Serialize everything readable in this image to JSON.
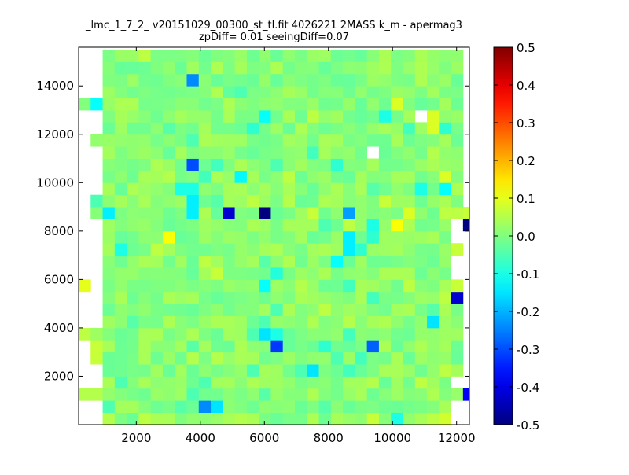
{
  "chart_data": {
    "type": "heatmap",
    "title": "_lmc_1_7_2_ v20151029_00300_st_tl.fit 4026221 2MASS k_m - apermag3",
    "subtitle": "zpDiff= 0.01 seeingDiff=0.07",
    "xlabel": "",
    "ylabel": "",
    "xlim": [
      200,
      12400
    ],
    "ylim": [
      0,
      15600
    ],
    "x_ticks": [
      "2000",
      "4000",
      "6000",
      "8000",
      "10000",
      "12000"
    ],
    "y_ticks": [
      "2000",
      "4000",
      "6000",
      "8000",
      "10000",
      "12000",
      "14000"
    ],
    "colorbar": {
      "colormap": "jet",
      "vmin": -0.5,
      "vmax": 0.5,
      "ticks": [
        "-0.5",
        "-0.4",
        "-0.3",
        "-0.2",
        "-0.1",
        "0.0",
        "0.1",
        "0.2",
        "0.3",
        "0.4",
        "0.5"
      ]
    },
    "bins": {
      "x_start": 200,
      "x_width": 375,
      "y_start": 0,
      "y_height": 500,
      "cols": 33,
      "rows": 31
    },
    "base_value": 0.01,
    "cells": [
      [
        5,
        30,
        0.06
      ],
      [
        9,
        28,
        -0.24
      ],
      [
        13,
        27,
        -0.05
      ],
      [
        12,
        27,
        -0.03
      ],
      [
        1,
        26,
        -0.12
      ],
      [
        15,
        25,
        -0.12
      ],
      [
        25,
        25,
        -0.1
      ],
      [
        19,
        25,
        0.06
      ],
      [
        26,
        26,
        0.09
      ],
      [
        29,
        25,
        0.09
      ],
      [
        27,
        24,
        -0.06
      ],
      [
        29,
        24,
        0.09
      ],
      [
        30,
        24,
        -0.08
      ],
      [
        14,
        24,
        -0.08
      ],
      [
        7,
        24,
        -0.04
      ],
      [
        9,
        23,
        -0.05
      ],
      [
        29,
        22,
        0.05
      ],
      [
        30,
        20,
        0.09
      ],
      [
        11,
        21,
        -0.06
      ],
      [
        16,
        21,
        -0.05
      ],
      [
        21,
        21,
        -0.08
      ],
      [
        19,
        22,
        -0.06
      ],
      [
        9,
        21,
        -0.3
      ],
      [
        10,
        20,
        -0.06
      ],
      [
        13,
        20,
        -0.13
      ],
      [
        7,
        20,
        0.05
      ],
      [
        5,
        20,
        0.04
      ],
      [
        17,
        20,
        0.06
      ],
      [
        8,
        19,
        -0.1
      ],
      [
        9,
        19,
        -0.1
      ],
      [
        13,
        19,
        0.04
      ],
      [
        24,
        19,
        -0.04
      ],
      [
        28,
        19,
        -0.1
      ],
      [
        30,
        19,
        -0.12
      ],
      [
        5,
        18,
        0.04
      ],
      [
        9,
        18,
        -0.14
      ],
      [
        11,
        18,
        -0.04
      ],
      [
        14,
        18,
        0.06
      ],
      [
        17,
        18,
        0.05
      ],
      [
        25,
        18,
        0.07
      ],
      [
        9,
        17,
        -0.14
      ],
      [
        12,
        17,
        -0.42
      ],
      [
        15,
        17,
        -0.5
      ],
      [
        22,
        17,
        -0.22
      ],
      [
        19,
        17,
        0.07
      ],
      [
        27,
        17,
        0.09
      ],
      [
        30,
        17,
        0.06
      ],
      [
        1,
        18,
        -0.05
      ],
      [
        2,
        17,
        -0.14
      ],
      [
        31,
        17,
        0.06
      ],
      [
        32,
        17,
        0.07
      ],
      [
        20,
        16,
        -0.05
      ],
      [
        24,
        16,
        -0.1
      ],
      [
        26,
        16,
        0.12
      ],
      [
        32,
        16,
        -0.65
      ],
      [
        22,
        16,
        0.06
      ],
      [
        24,
        15,
        -0.08
      ],
      [
        22,
        15,
        -0.14
      ],
      [
        7,
        15,
        0.12
      ],
      [
        3,
        14,
        -0.1
      ],
      [
        22,
        14,
        -0.14
      ],
      [
        23,
        14,
        -0.08
      ],
      [
        31,
        14,
        0.07
      ],
      [
        6,
        14,
        0.06
      ],
      [
        10,
        13,
        0.06
      ],
      [
        15,
        13,
        -0.04
      ],
      [
        21,
        13,
        -0.12
      ],
      [
        29,
        13,
        -0.02
      ],
      [
        11,
        12,
        0.07
      ],
      [
        16,
        12,
        -0.09
      ],
      [
        27,
        12,
        0.04
      ],
      [
        15,
        11,
        -0.12
      ],
      [
        18,
        11,
        0.05
      ],
      [
        22,
        11,
        -0.06
      ],
      [
        27,
        11,
        0.06
      ],
      [
        0,
        11,
        0.1
      ],
      [
        31,
        11,
        0.07
      ],
      [
        24,
        10,
        -0.06
      ],
      [
        30,
        10,
        0.06
      ],
      [
        31,
        10,
        -0.42
      ],
      [
        16,
        9,
        -0.05
      ],
      [
        20,
        9,
        0.06
      ],
      [
        29,
        9,
        -0.04
      ],
      [
        15,
        8,
        -0.05
      ],
      [
        22,
        8,
        0.05
      ],
      [
        29,
        8,
        -0.15
      ],
      [
        4,
        8,
        -0.04
      ],
      [
        15,
        7,
        -0.15
      ],
      [
        16,
        7,
        -0.1
      ],
      [
        22,
        7,
        -0.06
      ],
      [
        0,
        7,
        0.06
      ],
      [
        14,
        7,
        -0.05
      ],
      [
        9,
        6,
        -0.04
      ],
      [
        16,
        6,
        -0.32
      ],
      [
        20,
        6,
        -0.08
      ],
      [
        24,
        6,
        -0.28
      ],
      [
        1,
        6,
        0.07
      ],
      [
        2,
        6,
        0.04
      ],
      [
        31,
        6,
        -0.02
      ],
      [
        11,
        5,
        0.05
      ],
      [
        21,
        5,
        -0.05
      ],
      [
        23,
        5,
        -0.06
      ],
      [
        1,
        5,
        0.07
      ],
      [
        5,
        5,
        0.04
      ],
      [
        9,
        5,
        0.05
      ],
      [
        13,
        5,
        0.04
      ],
      [
        18,
        4,
        -0.05
      ],
      [
        19,
        4,
        -0.15
      ],
      [
        22,
        4,
        -0.06
      ],
      [
        14,
        4,
        -0.05
      ],
      [
        21,
        4,
        -0.02
      ],
      [
        25,
        4,
        0.04
      ],
      [
        26,
        4,
        0.04
      ],
      [
        30,
        4,
        0.06
      ],
      [
        3,
        3,
        -0.05
      ],
      [
        10,
        3,
        -0.05
      ],
      [
        24,
        3,
        0.05
      ],
      [
        28,
        3,
        0.06
      ],
      [
        0,
        2,
        0.05
      ],
      [
        1,
        2,
        0.05
      ],
      [
        9,
        2,
        -0.05
      ],
      [
        15,
        2,
        -0.04
      ],
      [
        23,
        2,
        0.04
      ],
      [
        32,
        2,
        -0.38
      ],
      [
        10,
        1,
        -0.24
      ],
      [
        11,
        1,
        -0.15
      ],
      [
        2,
        1,
        -0.05
      ],
      [
        8,
        1,
        -0.04
      ],
      [
        20,
        1,
        -0.04
      ],
      [
        2,
        0,
        0.05
      ],
      [
        5,
        0,
        0.06
      ],
      [
        7,
        0,
        0.04
      ],
      [
        13,
        0,
        0.05
      ],
      [
        24,
        0,
        0.07
      ],
      [
        26,
        0,
        -0.1
      ],
      [
        29,
        0,
        0.06
      ],
      [
        30,
        0,
        0.08
      ],
      [
        5,
        29,
        -0.02
      ]
    ],
    "empty": [
      [
        0,
        23
      ],
      [
        0,
        24
      ],
      [
        0,
        25
      ],
      [
        0,
        27
      ],
      [
        0,
        28
      ],
      [
        0,
        29
      ],
      [
        0,
        30
      ],
      [
        1,
        24
      ],
      [
        1,
        25
      ],
      [
        1,
        27
      ],
      [
        1,
        28
      ],
      [
        1,
        29
      ],
      [
        1,
        30
      ],
      [
        0,
        22
      ],
      [
        1,
        22
      ],
      [
        0,
        21
      ],
      [
        1,
        21
      ],
      [
        0,
        20
      ],
      [
        1,
        20
      ],
      [
        0,
        19
      ],
      [
        1,
        19
      ],
      [
        0,
        18
      ],
      [
        0,
        17
      ],
      [
        0,
        16
      ],
      [
        1,
        16
      ],
      [
        0,
        15
      ],
      [
        1,
        15
      ],
      [
        0,
        14
      ],
      [
        1,
        14
      ],
      [
        0,
        13
      ],
      [
        1,
        13
      ],
      [
        0,
        12
      ],
      [
        1,
        12
      ],
      [
        1,
        11
      ],
      [
        0,
        10
      ],
      [
        1,
        10
      ],
      [
        0,
        9
      ],
      [
        1,
        9
      ],
      [
        0,
        8
      ],
      [
        1,
        8
      ],
      [
        0,
        6
      ],
      [
        0,
        5
      ],
      [
        0,
        4
      ],
      [
        0,
        3
      ],
      [
        1,
        4
      ],
      [
        1,
        3
      ],
      [
        0,
        1
      ],
      [
        1,
        1
      ],
      [
        0,
        0
      ],
      [
        1,
        0
      ],
      [
        32,
        30
      ],
      [
        32,
        29
      ],
      [
        32,
        28
      ],
      [
        32,
        27
      ],
      [
        32,
        26
      ],
      [
        32,
        25
      ],
      [
        32,
        24
      ],
      [
        32,
        23
      ],
      [
        32,
        22
      ],
      [
        32,
        21
      ],
      [
        32,
        20
      ],
      [
        32,
        19
      ],
      [
        32,
        18
      ],
      [
        32,
        15
      ],
      [
        32,
        14
      ],
      [
        32,
        13
      ],
      [
        32,
        12
      ],
      [
        32,
        11
      ],
      [
        32,
        10
      ],
      [
        32,
        9
      ],
      [
        32,
        8
      ],
      [
        32,
        7
      ],
      [
        32,
        6
      ],
      [
        32,
        5
      ],
      [
        32,
        4
      ],
      [
        32,
        3
      ],
      [
        32,
        1
      ],
      [
        32,
        0
      ],
      [
        31,
        3
      ],
      [
        31,
        1
      ],
      [
        31,
        0
      ],
      [
        31,
        15
      ],
      [
        31,
        12
      ],
      [
        31,
        13
      ],
      [
        31,
        16
      ],
      [
        28,
        25
      ],
      [
        24,
        22
      ]
    ]
  }
}
